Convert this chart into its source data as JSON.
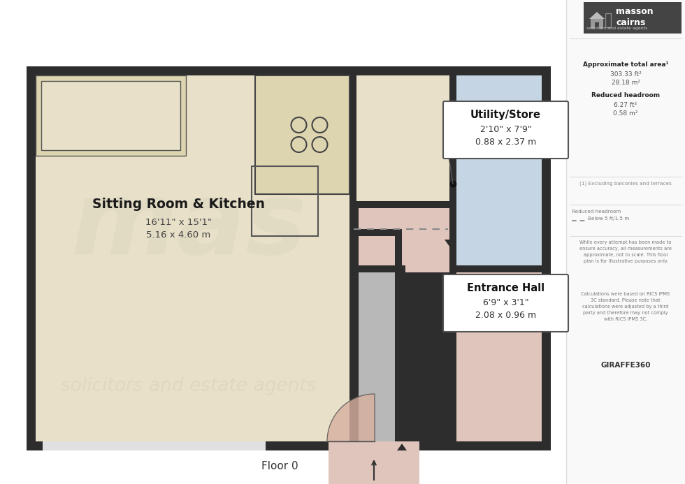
{
  "bg_color": "#ffffff",
  "wall_color": "#2d2d2d",
  "floor_sitting": "#e8e0c8",
  "floor_utility": "#c5d5e4",
  "floor_entrance": "#dfc5bb",
  "floor_bathroom": "#b8b8b8",
  "title_floor": "Floor 0",
  "room1_name": "Sitting Room & Kitchen",
  "room1_dim1": "16'11\" x 15'1\"",
  "room1_dim2": "5.16 x 4.60 m",
  "room2_name": "Utility/Store",
  "room2_dim1": "2'10\" x 7'9\"",
  "room2_dim2": "0.88 x 2.37 m",
  "room3_name": "Entrance Hall",
  "room3_dim1": "6'9\" x 3'1\"",
  "room3_dim2": "2.08 x 0.96 m",
  "sidebar_title": "Approximate total area¹",
  "sidebar_area1": "303.33 ft²",
  "sidebar_area2": "28.18 m²",
  "sidebar_reduced_title": "Reduced headroom",
  "sidebar_reduced1": "6.27 ft²",
  "sidebar_reduced2": "0.58 m²",
  "sidebar_note1": "(1) Excluding balconies and terraces",
  "sidebar_legend1": "Reduced headroom",
  "sidebar_legend2": "Below 5 ft/1.5 m",
  "sidebar_disclaimer": "While every attempt has been made to\nensure accuracy, all measurements are\napproximate, not to scale. This floor\nplan is for illustrative purposes only.",
  "sidebar_calcs": "Calculations were based on RICS IPMS\n3C standard. Please note that\ncalculations were adjusted by a third\nparty and therefore may not comply\nwith RICS IPMS 3C.",
  "brand": "GIRAFFE360",
  "company_line1": "masson",
  "company_line2": "cairns",
  "company_sub": "solicitors and estate agents"
}
